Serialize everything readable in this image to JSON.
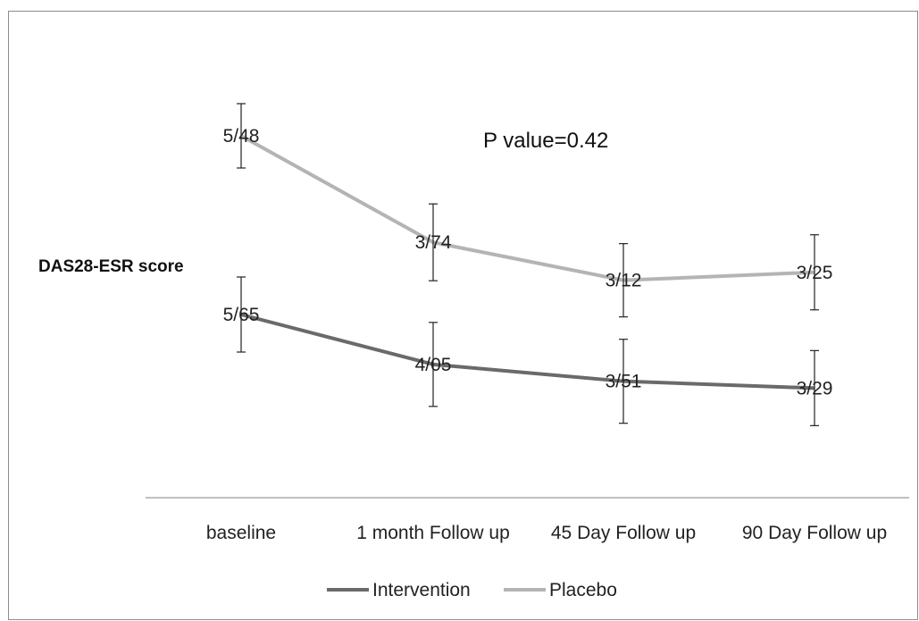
{
  "chart_data": {
    "type": "line",
    "title": "",
    "ylabel": "DAS28-ESR score",
    "xlabel": "",
    "annotation": "P value=0.42",
    "categories": [
      "baseline",
      "1 month Follow up",
      "45 Day Follow up",
      "90 Day Follow up"
    ],
    "series": [
      {
        "name": "Intervention",
        "color": "#6a6a6a",
        "values": [
          5.65,
          4.05,
          3.51,
          3.29
        ],
        "labels": [
          "5/65",
          "4/05",
          "3/51",
          "3/29"
        ],
        "error": [
          1.2,
          1.3,
          1.35,
          1.2
        ]
      },
      {
        "name": "Placebo",
        "color": "#b4b4b4",
        "values": [
          5.48,
          3.74,
          3.12,
          3.25
        ],
        "labels": [
          "5/48",
          "3/74",
          "3/12",
          "3/25"
        ],
        "error": [
          1.0,
          1.2,
          1.15,
          1.2
        ]
      }
    ],
    "legend_position": "bottom",
    "grid": false
  }
}
